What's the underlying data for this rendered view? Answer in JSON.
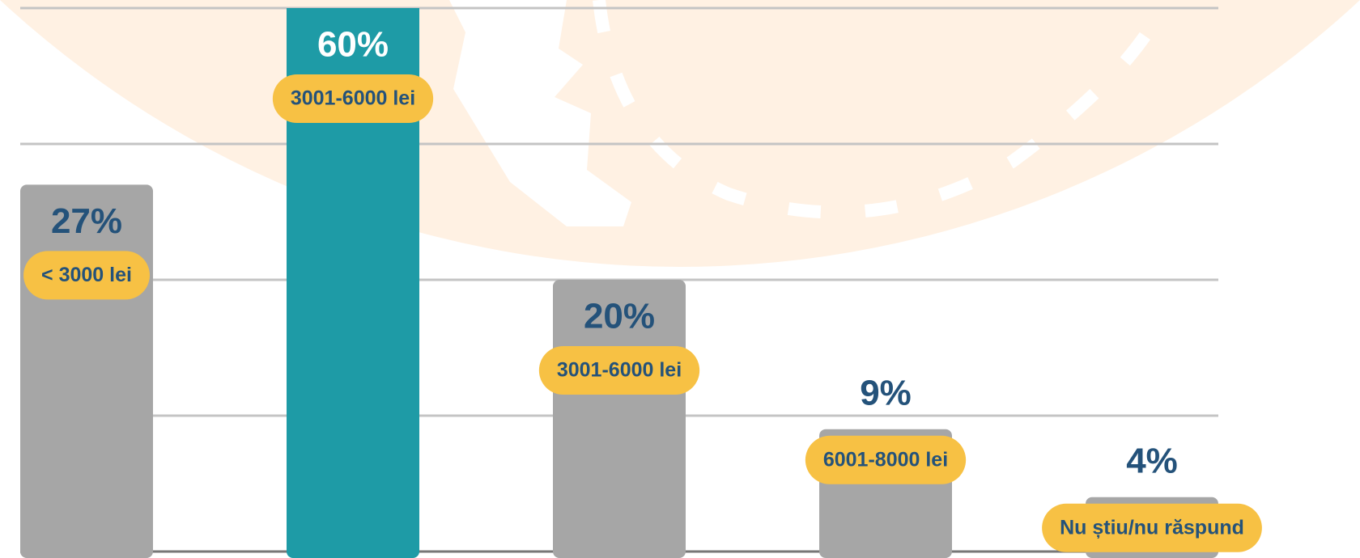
{
  "chart_data": {
    "type": "bar",
    "categories": [
      "< 3000 lei",
      "3001-6000 lei",
      "3001-6000 lei",
      "6001-8000 lei",
      "Nu știu/nu răspund"
    ],
    "values": [
      27,
      60,
      20,
      9,
      4
    ],
    "value_labels": [
      "27%",
      "60%",
      "20%",
      "9%",
      "4%"
    ],
    "colors": [
      "#a6a6a6",
      "#1e9ba6",
      "#a6a6a6",
      "#a6a6a6",
      "#a6a6a6"
    ],
    "ylim": [
      0,
      40
    ],
    "yticks": [
      0,
      10,
      20,
      30,
      40
    ],
    "grid": true
  }
}
